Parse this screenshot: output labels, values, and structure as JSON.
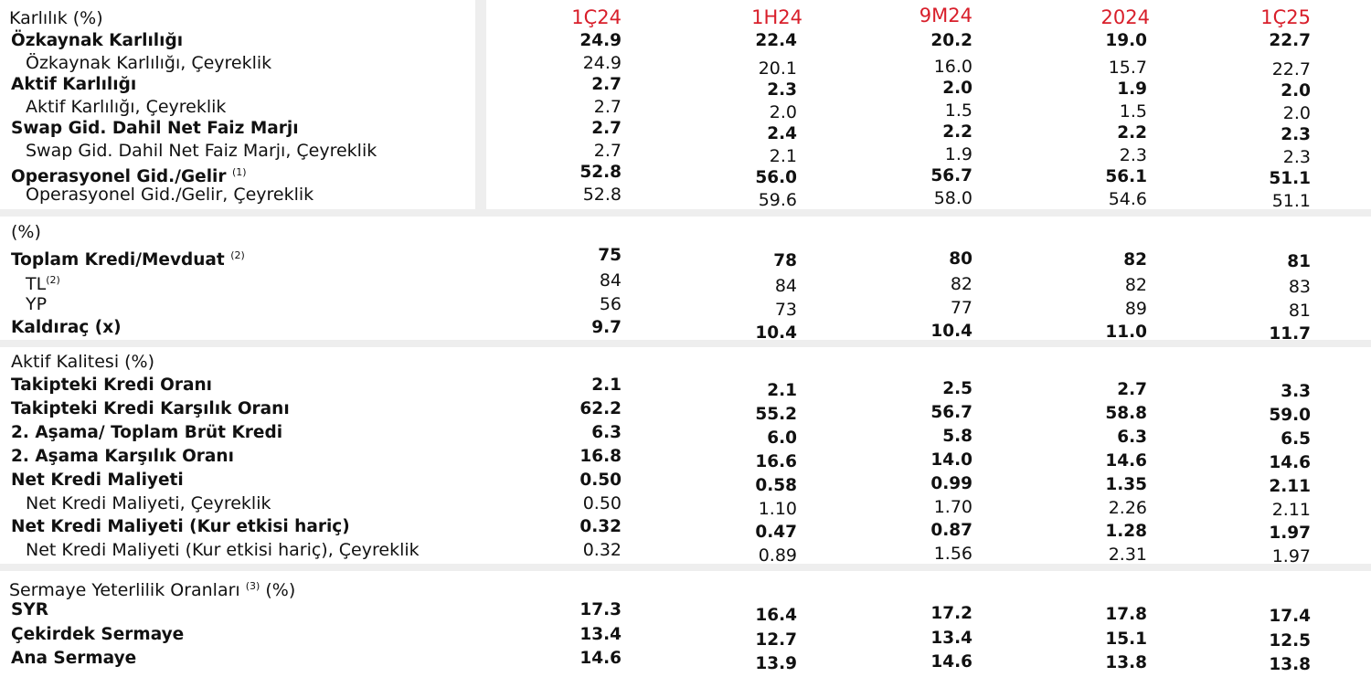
{
  "columns": [
    "1Ç24",
    "1H24",
    "9M24",
    "2024",
    "1Ç25"
  ],
  "sections": [
    {
      "title": "Karlılık (%)",
      "rows": [
        {
          "label": "Özkaynak Karlılığı",
          "bold": true,
          "values": [
            "24.9",
            "22.4",
            "20.2",
            "19.0",
            "22.7"
          ]
        },
        {
          "label": "Özkaynak Karlılığı, Çeyreklik",
          "values": [
            "24.9",
            "20.1",
            "16.0",
            "15.7",
            "22.7"
          ]
        },
        {
          "label": "Aktif Karlılığı",
          "bold": true,
          "values": [
            "2.7",
            "2.3",
            "2.0",
            "1.9",
            "2.0"
          ]
        },
        {
          "label": "Aktif Karlılığı, Çeyreklik",
          "values": [
            "2.7",
            "2.0",
            "1.5",
            "1.5",
            "2.0"
          ]
        },
        {
          "label": "Swap Gid. Dahil Net Faiz Marjı",
          "bold": true,
          "values": [
            "2.7",
            "2.4",
            "2.2",
            "2.2",
            "2.3"
          ]
        },
        {
          "label": "Swap Gid. Dahil Net Faiz Marjı, Çeyreklik",
          "values": [
            "2.7",
            "2.1",
            "1.9",
            "2.3",
            "2.3"
          ]
        },
        {
          "label": "Operasyonel Gid./Gelir",
          "sup": "(1)",
          "bold": true,
          "values": [
            "52.8",
            "56.0",
            "56.7",
            "56.1",
            "51.1"
          ]
        },
        {
          "label": "Operasyonel Gid./Gelir, Çeyreklik",
          "values": [
            "52.8",
            "59.6",
            "58.0",
            "54.6",
            "51.1"
          ]
        }
      ]
    },
    {
      "title": "(%)",
      "rows": [
        {
          "label": "Toplam Kredi/Mevduat",
          "sup": "(2)",
          "bold": true,
          "values": [
            "75",
            "78",
            "80",
            "82",
            "81"
          ]
        },
        {
          "label": "TL",
          "sup": "(2)",
          "values": [
            "84",
            "84",
            "82",
            "82",
            "83"
          ]
        },
        {
          "label": "YP",
          "values": [
            "56",
            "73",
            "77",
            "89",
            "81"
          ]
        },
        {
          "label": "Kaldıraç (x)",
          "bold": true,
          "values": [
            "9.7",
            "10.4",
            "10.4",
            "11.0",
            "11.7"
          ]
        }
      ]
    },
    {
      "title": "Aktif Kalitesi (%)",
      "rows": [
        {
          "label": "Takipteki Kredi Oranı",
          "bold": true,
          "values": [
            "2.1",
            "2.1",
            "2.5",
            "2.7",
            "3.3"
          ]
        },
        {
          "label": "Takipteki Kredi Karşılık Oranı",
          "bold": true,
          "values": [
            "62.2",
            "55.2",
            "56.7",
            "58.8",
            "59.0"
          ]
        },
        {
          "label": "2. Aşama/ Toplam Brüt Kredi",
          "bold": true,
          "values": [
            "6.3",
            "6.0",
            "5.8",
            "6.3",
            "6.5"
          ]
        },
        {
          "label": "2. Aşama Karşılık Oranı",
          "bold": true,
          "values": [
            "16.8",
            "16.6",
            "14.0",
            "14.6",
            "14.6"
          ]
        },
        {
          "label": "Net Kredi Maliyeti",
          "bold": true,
          "values": [
            "0.50",
            "0.58",
            "0.99",
            "1.35",
            "2.11"
          ]
        },
        {
          "label": "Net Kredi Maliyeti, Çeyreklik",
          "values": [
            "0.50",
            "1.10",
            "1.70",
            "2.26",
            "2.11"
          ]
        },
        {
          "label": "Net Kredi Maliyeti (Kur etkisi hariç)",
          "bold": true,
          "values": [
            "0.32",
            "0.47",
            "0.87",
            "1.28",
            "1.97"
          ]
        },
        {
          "label": "Net Kredi Maliyeti (Kur etkisi hariç), Çeyreklik",
          "values": [
            "0.32",
            "0.89",
            "1.56",
            "2.31",
            "1.97"
          ]
        }
      ]
    },
    {
      "title": "Sermaye Yeterlilik Oranları",
      "title_sup": "(3)",
      "title_suffix": " (%)",
      "rows": [
        {
          "label": "SYR",
          "bold": true,
          "values": [
            "17.3",
            "16.4",
            "17.2",
            "17.8",
            "17.4"
          ]
        },
        {
          "label": "Çekirdek Sermaye",
          "bold": true,
          "values": [
            "13.4",
            "12.7",
            "13.4",
            "15.1",
            "12.5"
          ]
        },
        {
          "label": "Ana Sermaye",
          "bold": true,
          "values": [
            "14.6",
            "13.9",
            "14.6",
            "13.8",
            "13.8"
          ]
        }
      ]
    }
  ]
}
